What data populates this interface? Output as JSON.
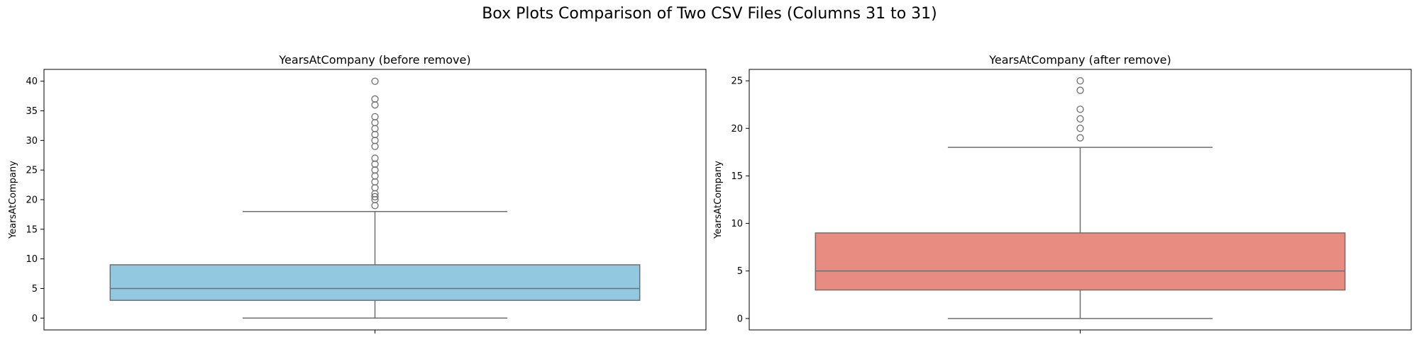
{
  "figure": {
    "title": "Box Plots Comparison of Two CSV Files (Columns 31 to 31)"
  },
  "chart_data": [
    {
      "type": "box",
      "title": "YearsAtCompany (before remove)",
      "xlabel": "",
      "ylabel": "YearsAtCompany",
      "ylim": [
        -2,
        42
      ],
      "yticks": [
        0,
        5,
        10,
        15,
        20,
        25,
        30,
        35,
        40
      ],
      "color": "#92c9e0",
      "q1": 3,
      "median": 5,
      "q3": 9,
      "whisker_low": 0,
      "whisker_high": 18,
      "outliers": [
        19,
        20,
        20.5,
        21,
        22,
        23,
        24,
        25,
        26,
        27,
        29,
        30,
        31,
        32,
        33,
        34,
        36,
        37,
        40
      ],
      "grid": false
    },
    {
      "type": "box",
      "title": "YearsAtCompany (after remove)",
      "xlabel": "",
      "ylabel": "YearsAtCompany",
      "ylim": [
        -1.2,
        26.2
      ],
      "yticks": [
        0,
        5,
        10,
        15,
        20,
        25
      ],
      "color": "#e88c82",
      "q1": 3,
      "median": 5,
      "q3": 9,
      "whisker_low": 0,
      "whisker_high": 18,
      "outliers": [
        19,
        20,
        21,
        22,
        24,
        25
      ],
      "grid": false
    }
  ]
}
